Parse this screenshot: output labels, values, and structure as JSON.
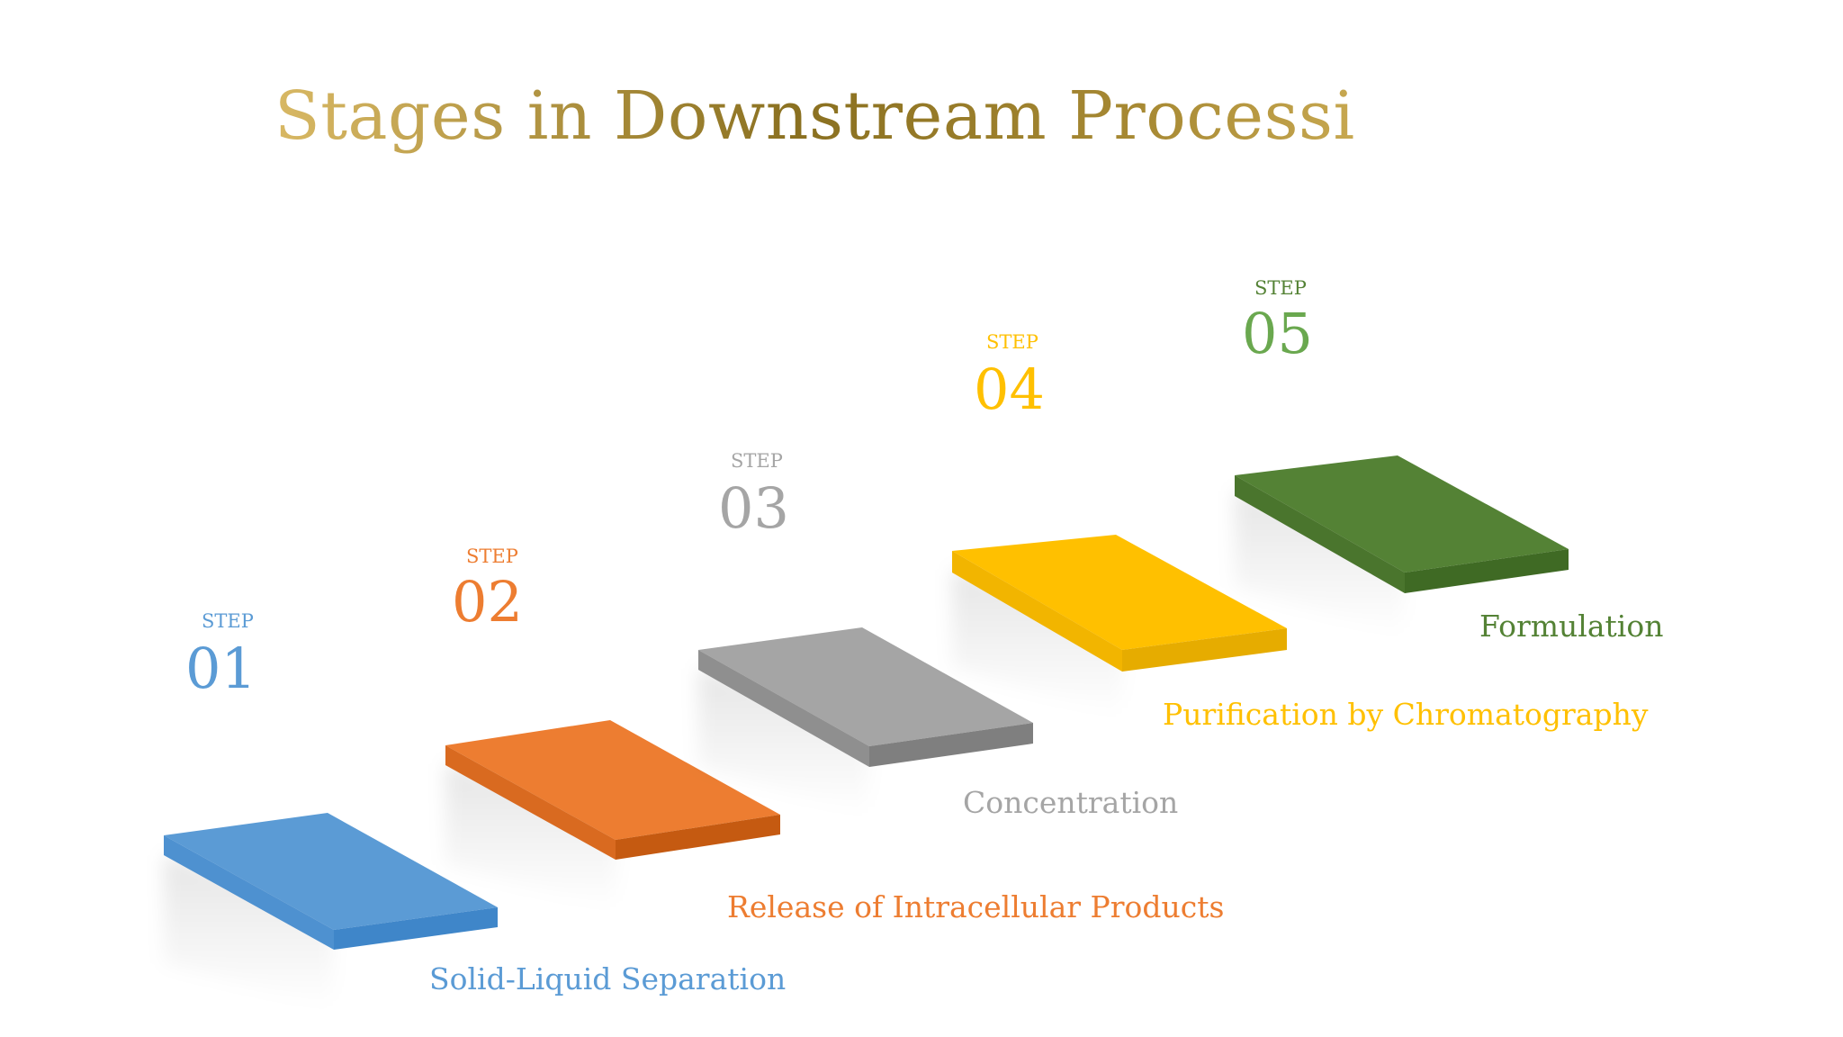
{
  "title": "Stages in Downstream Processing",
  "colors": {
    "title_gold_light": "#c9a54a",
    "title_gold_dark": "#7a6418",
    "step1": "#5b9bd5",
    "step2": "#ed7d31",
    "step3": "#a5a5a5",
    "step4": "#ffc000",
    "step5": "#548235"
  },
  "steps": [
    {
      "label": "STEP",
      "number": "01",
      "caption": "Solid-Liquid Separation",
      "color": "#5b9bd5",
      "side": "#3f86c9"
    },
    {
      "label": "STEP",
      "number": "02",
      "caption": "Release of  Intracellular Products",
      "color": "#ed7d31",
      "side": "#c55a11"
    },
    {
      "label": "STEP",
      "number": "03",
      "caption": "Concentration",
      "color": "#a5a5a5",
      "side": "#7f7f7f"
    },
    {
      "label": "STEP",
      "number": "04",
      "caption": "Purification by Chromatography",
      "color": "#ffc000",
      "side": "#e6ac00"
    },
    {
      "label": "STEP",
      "number": "05",
      "caption": "Formulation",
      "color": "#548235",
      "side": "#3f6a24"
    }
  ]
}
